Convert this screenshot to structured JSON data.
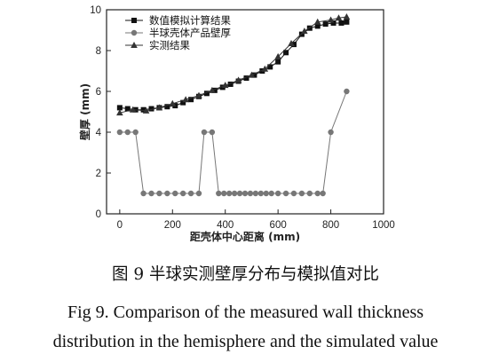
{
  "chart_data": {
    "type": "line",
    "xlabel": "距壳体中心距离 (mm)",
    "ylabel": "壁厚 (mm)",
    "xlim": [
      -50,
      1000
    ],
    "ylim": [
      0,
      10
    ],
    "xticks": [
      "0",
      "200",
      "400",
      "600",
      "800",
      "1000"
    ],
    "yticks": [
      "0",
      "2",
      "4",
      "6",
      "8",
      "10"
    ],
    "grid": false,
    "legend_position": "top-left",
    "series": [
      {
        "name": "数值模拟计算结果",
        "marker": "square",
        "color": "#111111",
        "x": [
          0,
          30,
          60,
          90,
          120,
          150,
          180,
          210,
          240,
          270,
          300,
          330,
          360,
          390,
          420,
          450,
          480,
          510,
          540,
          570,
          600,
          630,
          660,
          690,
          720,
          750,
          780,
          810,
          840,
          860
        ],
        "y": [
          5.2,
          5.15,
          5.1,
          5.1,
          5.15,
          5.2,
          5.25,
          5.3,
          5.45,
          5.6,
          5.75,
          5.9,
          6.05,
          6.2,
          6.35,
          6.5,
          6.65,
          6.8,
          7.0,
          7.2,
          7.45,
          7.9,
          8.3,
          8.8,
          9.1,
          9.2,
          9.3,
          9.35,
          9.35,
          9.4
        ]
      },
      {
        "name": "半球壳体产品壁厚",
        "marker": "circle",
        "color": "#777777",
        "x": [
          0,
          30,
          60,
          90,
          120,
          150,
          180,
          210,
          240,
          270,
          300,
          320,
          350,
          375,
          395,
          415,
          435,
          455,
          475,
          495,
          515,
          535,
          555,
          575,
          600,
          630,
          660,
          690,
          720,
          750,
          770,
          800,
          860
        ],
        "y": [
          4,
          4,
          4,
          1,
          1,
          1,
          1,
          1,
          1,
          1,
          1,
          4,
          4,
          1,
          1,
          1,
          1,
          1,
          1,
          1,
          1,
          1,
          1,
          1,
          1,
          1,
          1,
          1,
          1,
          1,
          1,
          4,
          6
        ]
      },
      {
        "name": "实测结果",
        "marker": "triangle",
        "color": "#333333",
        "x": [
          0,
          50,
          100,
          150,
          200,
          250,
          300,
          350,
          400,
          450,
          500,
          550,
          600,
          650,
          700,
          750,
          800,
          830,
          860
        ],
        "y": [
          4.95,
          5.1,
          5.05,
          5.2,
          5.4,
          5.6,
          5.8,
          6.05,
          6.3,
          6.55,
          6.8,
          7.1,
          7.7,
          8.35,
          8.95,
          9.4,
          9.5,
          9.6,
          9.65
        ]
      }
    ]
  },
  "captions": {
    "zh": "图 9  半球实测壁厚分布与模拟值对比",
    "en_line1": "Fig 9.   Comparison of the measured wall thickness",
    "en_line2": "distribution in the hemisphere and the simulated value"
  }
}
